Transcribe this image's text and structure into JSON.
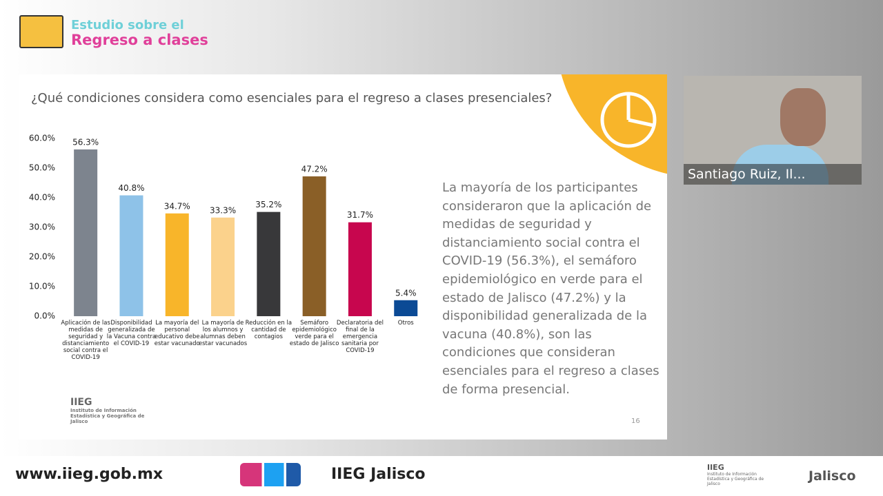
{
  "header": {
    "line1": "Estudio sobre el",
    "line2": "Regreso a clases"
  },
  "chart_data": {
    "type": "bar",
    "title": "¿Qué condiciones considera como esenciales para el regreso a clases presenciales?",
    "categories": [
      "Aplicación de las medidas de seguridad y distanciamiento social contra el COVID-19",
      "Disponibilidad generalizada de la Vacuna contra el COVID-19",
      "La mayoría del personal educativo debe estar vacunado",
      "La mayoría de los alumnos y alumnas deben estar vacunados",
      "Reducción en la cantidad de contagios",
      "Semáforo epidemiológico verde para el estado de Jalisco",
      "Declaratoria del final de la emergencia sanitaria por COVID-19",
      "Otros"
    ],
    "values": [
      56.3,
      40.8,
      34.7,
      33.3,
      35.2,
      47.2,
      31.7,
      5.4
    ],
    "value_labels": [
      "56.3%",
      "40.8%",
      "34.7%",
      "33.3%",
      "35.2%",
      "47.2%",
      "31.7%",
      "5.4%"
    ],
    "colors": [
      "#7d848e",
      "#8ec2e8",
      "#f8b52a",
      "#fbd28c",
      "#38383a",
      "#8a5f27",
      "#c7064e",
      "#0b4a95"
    ],
    "ylim": [
      0,
      60
    ],
    "yticks": [
      {
        "value": 0,
        "label": "0.0%"
      },
      {
        "value": 10,
        "label": "10.0%"
      },
      {
        "value": 20,
        "label": "20.0%"
      },
      {
        "value": 30,
        "label": "30.0%"
      },
      {
        "value": 40,
        "label": "40.0%"
      },
      {
        "value": 50,
        "label": "50.0%"
      },
      {
        "value": 60,
        "label": "60.0%"
      }
    ]
  },
  "summary": "La mayoría de los participantes consideraron que la aplicación de medidas de seguridad y distanciamiento social contra el COVID-19 (56.3%), el semáforo epidemiológico en verde para el estado de Jalisco (47.2%) y la disponibilidad generalizada de la vacuna (40.8%), son las condiciones que consideran esenciales para el regreso a clases de forma presencial.",
  "slide_logo": {
    "name": "IIEG",
    "subtitle": "Instituto de Información Estadística y Geográfica de Jalisco"
  },
  "page_number": "16",
  "speaker": "Santiago Ruiz, Il...",
  "footer": {
    "url": "www.iieg.gob.mx",
    "social": "IIEG Jalisco",
    "logo_name": "IIEG",
    "logo_subtitle": "Instituto de Información Estadística y Geográfica de Jalisco",
    "state": "Jalisco"
  }
}
